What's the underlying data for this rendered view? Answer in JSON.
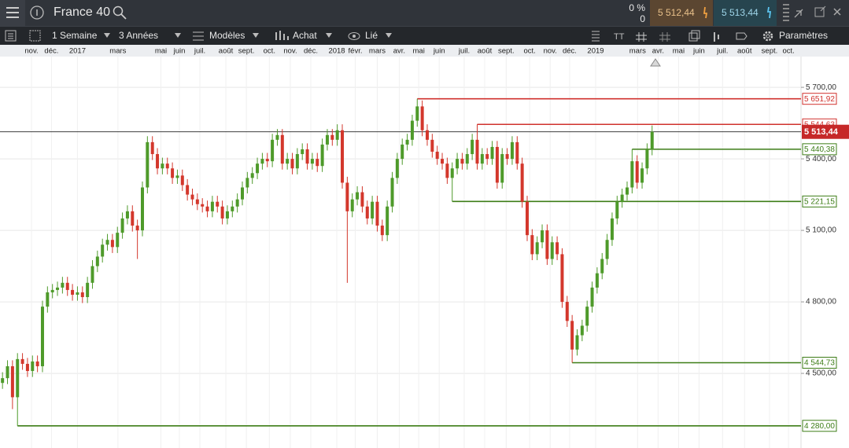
{
  "header": {
    "instrument": "France 40",
    "change": "0 %",
    "change_sub": "0",
    "sell": "5 512,44",
    "buy": "5 513,44"
  },
  "toolbar": {
    "period": "1 Semaine",
    "range": "3 Années",
    "models": "Modèles",
    "order": "Achat",
    "link": "Lié",
    "settings": "Paramètres"
  },
  "chart_data": {
    "type": "candlestick",
    "up_color": "#4e9a2a",
    "down_color": "#d3372c",
    "grid": true,
    "xlim": [
      -0.5,
      159.8
    ],
    "ylim": [
      4187,
      5829
    ],
    "yticks": [
      {
        "value": 5700,
        "label": "5 700,00"
      },
      {
        "value": 5400,
        "label": "5 400,00"
      },
      {
        "value": 5100,
        "label": "5 100,00"
      },
      {
        "value": 4800,
        "label": "4 800,00"
      },
      {
        "value": 4500,
        "label": "4 500,00"
      }
    ],
    "xticks": [
      {
        "value": 5.8,
        "label": "nov."
      },
      {
        "value": 9.8,
        "label": "déc."
      },
      {
        "value": 15,
        "label": "2017"
      },
      {
        "value": 23.1,
        "label": "mars"
      },
      {
        "value": 31.7,
        "label": "mai"
      },
      {
        "value": 35.4,
        "label": "juin"
      },
      {
        "value": 39.5,
        "label": "juil."
      },
      {
        "value": 44.7,
        "label": "août"
      },
      {
        "value": 48.8,
        "label": "sept."
      },
      {
        "value": 53.4,
        "label": "oct."
      },
      {
        "value": 57.6,
        "label": "nov."
      },
      {
        "value": 61.7,
        "label": "déc."
      },
      {
        "value": 66.9,
        "label": "2018"
      },
      {
        "value": 70.6,
        "label": "févr."
      },
      {
        "value": 75,
        "label": "mars"
      },
      {
        "value": 79.4,
        "label": "avr."
      },
      {
        "value": 83.3,
        "label": "mai"
      },
      {
        "value": 87.4,
        "label": "juin"
      },
      {
        "value": 92.4,
        "label": "juil."
      },
      {
        "value": 96.5,
        "label": "août"
      },
      {
        "value": 100.8,
        "label": "sept."
      },
      {
        "value": 105.5,
        "label": "oct."
      },
      {
        "value": 109.6,
        "label": "nov."
      },
      {
        "value": 113.5,
        "label": "déc."
      },
      {
        "value": 118.7,
        "label": "2019"
      },
      {
        "value": 127.1,
        "label": "mars"
      },
      {
        "value": 131.2,
        "label": "avr."
      },
      {
        "value": 135.3,
        "label": "mai"
      },
      {
        "value": 139.4,
        "label": "juin"
      },
      {
        "value": 144.1,
        "label": "juil."
      },
      {
        "value": 148.5,
        "label": "août"
      },
      {
        "value": 153.5,
        "label": "sept."
      },
      {
        "value": 157.3,
        "label": "oct."
      }
    ],
    "x": [
      0,
      1,
      2,
      3,
      4,
      5,
      6,
      7,
      8,
      9,
      10,
      11,
      12,
      13,
      14,
      15,
      16,
      17,
      18,
      19,
      20,
      21,
      22,
      23,
      24,
      25,
      26,
      27,
      28,
      29,
      30,
      31,
      32,
      33,
      34,
      35,
      36,
      37,
      38,
      39,
      40,
      41,
      42,
      43,
      44,
      45,
      46,
      47,
      48,
      49,
      50,
      51,
      52,
      53,
      54,
      55,
      56,
      57,
      58,
      59,
      60,
      61,
      62,
      63,
      64,
      65,
      66,
      67,
      68,
      69,
      70,
      71,
      72,
      73,
      74,
      75,
      76,
      77,
      78,
      79,
      80,
      81,
      82,
      83,
      84,
      85,
      86,
      87,
      88,
      89,
      90,
      91,
      92,
      93,
      94,
      95,
      96,
      97,
      98,
      99,
      100,
      101,
      102,
      103,
      104,
      105,
      106,
      107,
      108,
      109,
      110,
      111,
      112,
      113,
      114,
      115,
      116,
      117,
      118,
      119,
      120,
      121,
      122,
      123,
      124,
      125,
      126,
      127,
      128,
      129,
      130
    ],
    "candles": [
      [
        4460,
        4505,
        4435,
        4480
      ],
      [
        4480,
        4555,
        4455,
        4530
      ],
      [
        4530,
        4555,
        4350,
        4400
      ],
      [
        4400,
        4585,
        4280,
        4560
      ],
      [
        4560,
        4585,
        4515,
        4540
      ],
      [
        4540,
        4565,
        4485,
        4510
      ],
      [
        4510,
        4575,
        4485,
        4550
      ],
      [
        4550,
        4575,
        4505,
        4530
      ],
      [
        4530,
        4805,
        4505,
        4780
      ],
      [
        4780,
        4865,
        4755,
        4840
      ],
      [
        4840,
        4875,
        4815,
        4850
      ],
      [
        4850,
        4885,
        4825,
        4860
      ],
      [
        4860,
        4905,
        4835,
        4880
      ],
      [
        4880,
        4905,
        4825,
        4850
      ],
      [
        4850,
        4875,
        4805,
        4830
      ],
      [
        4830,
        4865,
        4805,
        4840
      ],
      [
        4840,
        4865,
        4795,
        4820
      ],
      [
        4820,
        4905,
        4795,
        4880
      ],
      [
        4880,
        4975,
        4855,
        4950
      ],
      [
        4950,
        5015,
        4925,
        4990
      ],
      [
        4990,
        5065,
        4965,
        5040
      ],
      [
        5040,
        5085,
        5015,
        5060
      ],
      [
        5060,
        5085,
        5005,
        5030
      ],
      [
        5030,
        5115,
        5005,
        5090
      ],
      [
        5090,
        5175,
        5065,
        5150
      ],
      [
        5150,
        5205,
        5125,
        5180
      ],
      [
        5180,
        5205,
        5095,
        5120
      ],
      [
        5120,
        5145,
        4980,
        5100
      ],
      [
        5100,
        5305,
        5075,
        5280
      ],
      [
        5280,
        5495,
        5255,
        5470
      ],
      [
        5470,
        5495,
        5395,
        5420
      ],
      [
        5420,
        5445,
        5335,
        5360
      ],
      [
        5360,
        5405,
        5335,
        5380
      ],
      [
        5380,
        5405,
        5335,
        5360
      ],
      [
        5360,
        5385,
        5295,
        5320
      ],
      [
        5320,
        5355,
        5295,
        5330
      ],
      [
        5330,
        5355,
        5265,
        5290
      ],
      [
        5290,
        5315,
        5225,
        5250
      ],
      [
        5250,
        5275,
        5205,
        5230
      ],
      [
        5230,
        5255,
        5185,
        5210
      ],
      [
        5210,
        5235,
        5175,
        5200
      ],
      [
        5200,
        5225,
        5155,
        5180
      ],
      [
        5180,
        5245,
        5155,
        5220
      ],
      [
        5220,
        5245,
        5175,
        5200
      ],
      [
        5200,
        5225,
        5125,
        5150
      ],
      [
        5150,
        5205,
        5125,
        5180
      ],
      [
        5180,
        5225,
        5155,
        5200
      ],
      [
        5200,
        5255,
        5175,
        5230
      ],
      [
        5230,
        5305,
        5205,
        5280
      ],
      [
        5280,
        5345,
        5255,
        5320
      ],
      [
        5320,
        5365,
        5295,
        5340
      ],
      [
        5340,
        5405,
        5315,
        5380
      ],
      [
        5380,
        5425,
        5355,
        5400
      ],
      [
        5400,
        5425,
        5365,
        5390
      ],
      [
        5390,
        5505,
        5365,
        5480
      ],
      [
        5480,
        5525,
        5455,
        5500
      ],
      [
        5500,
        5525,
        5355,
        5380
      ],
      [
        5380,
        5425,
        5355,
        5400
      ],
      [
        5400,
        5425,
        5335,
        5360
      ],
      [
        5360,
        5445,
        5335,
        5420
      ],
      [
        5420,
        5465,
        5395,
        5440
      ],
      [
        5440,
        5465,
        5355,
        5380
      ],
      [
        5380,
        5425,
        5355,
        5400
      ],
      [
        5400,
        5425,
        5345,
        5370
      ],
      [
        5370,
        5485,
        5345,
        5460
      ],
      [
        5460,
        5525,
        5435,
        5500
      ],
      [
        5500,
        5525,
        5455,
        5480
      ],
      [
        5480,
        5545,
        5455,
        5520
      ],
      [
        5520,
        5545,
        5275,
        5300
      ],
      [
        5300,
        5325,
        4880,
        5180
      ],
      [
        5180,
        5255,
        5155,
        5230
      ],
      [
        5230,
        5285,
        5205,
        5260
      ],
      [
        5260,
        5285,
        5175,
        5200
      ],
      [
        5200,
        5225,
        5125,
        5150
      ],
      [
        5150,
        5245,
        5125,
        5220
      ],
      [
        5220,
        5245,
        5095,
        5120
      ],
      [
        5120,
        5145,
        5055,
        5080
      ],
      [
        5080,
        5225,
        5055,
        5200
      ],
      [
        5200,
        5345,
        5175,
        5320
      ],
      [
        5320,
        5425,
        5295,
        5400
      ],
      [
        5400,
        5485,
        5375,
        5460
      ],
      [
        5460,
        5505,
        5435,
        5480
      ],
      [
        5480,
        5585,
        5455,
        5560
      ],
      [
        5560,
        5651.92,
        5535,
        5620
      ],
      [
        5620,
        5645,
        5495,
        5520
      ],
      [
        5520,
        5545,
        5455,
        5480
      ],
      [
        5480,
        5505,
        5405,
        5430
      ],
      [
        5430,
        5455,
        5375,
        5400
      ],
      [
        5400,
        5425,
        5355,
        5380
      ],
      [
        5380,
        5405,
        5295,
        5320
      ],
      [
        5320,
        5385,
        5221.15,
        5360
      ],
      [
        5360,
        5425,
        5335,
        5400
      ],
      [
        5400,
        5425,
        5355,
        5380
      ],
      [
        5380,
        5445,
        5355,
        5420
      ],
      [
        5420,
        5505,
        5395,
        5480
      ],
      [
        5480,
        5544.63,
        5355,
        5380
      ],
      [
        5380,
        5445,
        5355,
        5420
      ],
      [
        5420,
        5445,
        5375,
        5400
      ],
      [
        5400,
        5475,
        5375,
        5450
      ],
      [
        5450,
        5475,
        5275,
        5300
      ],
      [
        5300,
        5445,
        5275,
        5420
      ],
      [
        5420,
        5445,
        5375,
        5400
      ],
      [
        5400,
        5495,
        5375,
        5470
      ],
      [
        5470,
        5495,
        5355,
        5380
      ],
      [
        5380,
        5405,
        5195,
        5220
      ],
      [
        5220,
        5245,
        5055,
        5080
      ],
      [
        5080,
        5105,
        4975,
        5000
      ],
      [
        5000,
        5075,
        4975,
        5050
      ],
      [
        5050,
        5125,
        5025,
        5100
      ],
      [
        5100,
        5125,
        4955,
        4980
      ],
      [
        4980,
        5075,
        4955,
        5050
      ],
      [
        5050,
        5075,
        4975,
        5000
      ],
      [
        5000,
        5025,
        4775,
        4800
      ],
      [
        4800,
        4825,
        4695,
        4720
      ],
      [
        4720,
        4745,
        4544.73,
        4600
      ],
      [
        4600,
        4685,
        4575,
        4660
      ],
      [
        4660,
        4725,
        4635,
        4700
      ],
      [
        4700,
        4805,
        4675,
        4780
      ],
      [
        4780,
        4885,
        4755,
        4860
      ],
      [
        4860,
        4945,
        4835,
        4920
      ],
      [
        4920,
        5005,
        4895,
        4980
      ],
      [
        4980,
        5085,
        4955,
        5060
      ],
      [
        5060,
        5175,
        5035,
        5150
      ],
      [
        5150,
        5245,
        5125,
        5220
      ],
      [
        5220,
        5275,
        5195,
        5250
      ],
      [
        5250,
        5305,
        5225,
        5280
      ],
      [
        5280,
        5440.38,
        5255,
        5390
      ],
      [
        5390,
        5415,
        5275,
        5300
      ],
      [
        5300,
        5385,
        5275,
        5360
      ],
      [
        5360,
        5465,
        5335,
        5440
      ],
      [
        5440,
        5540,
        5415,
        5513.44
      ]
    ],
    "levels": [
      {
        "value": 5651.92,
        "label": "5 651,92",
        "color": "#d0312d",
        "from": 83
      },
      {
        "value": 5544.63,
        "label": "5 544,63",
        "color": "#d0312d",
        "from": 95
      },
      {
        "value": 5440.38,
        "label": "5 440,38",
        "color": "#3d7d17",
        "from": 126
      },
      {
        "value": 5221.15,
        "label": "5 221,15",
        "color": "#3d7d17",
        "from": 90
      },
      {
        "value": 4544.73,
        "label": "4 544,73",
        "color": "#3d7d17",
        "from": 114
      },
      {
        "value": 4280,
        "label": "4 280,00",
        "color": "#3d7d17",
        "from": 3
      }
    ],
    "current": {
      "value": 5513.44,
      "label": "5 513,44",
      "color": "#c62828"
    }
  }
}
